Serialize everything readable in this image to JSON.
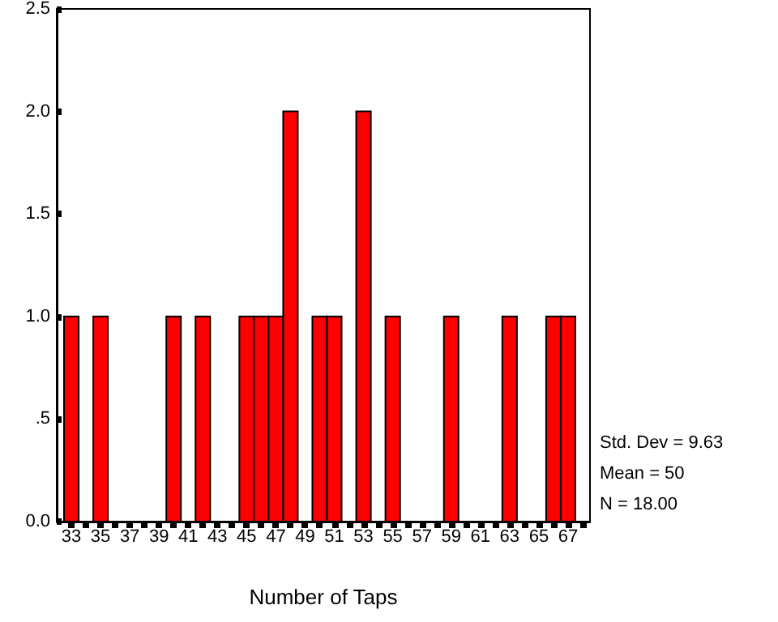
{
  "chart_data": {
    "type": "histogram",
    "xlabel": "Number of Taps",
    "bins": [
      32.5,
      33.5,
      34.5,
      35.5,
      36.5,
      37.5,
      38.5,
      39.5,
      40.5,
      41.5,
      42.5,
      43.5,
      44.5,
      45.5,
      46.5,
      47.5,
      48.5,
      49.5,
      50.5,
      51.5,
      52.5,
      53.5,
      54.5,
      55.5,
      56.5,
      57.5,
      58.5,
      59.5,
      60.5,
      61.5,
      62.5,
      63.5,
      64.5,
      65.5,
      66.5,
      67.5
    ],
    "values": [
      1,
      0,
      1,
      0,
      0,
      0,
      0,
      1,
      0,
      1,
      0,
      0,
      1,
      1,
      1,
      2,
      0,
      1,
      1,
      0,
      2,
      0,
      1,
      0,
      0,
      0,
      1,
      0,
      0,
      0,
      1,
      0,
      0,
      1,
      1
    ],
    "color": "#ff0000",
    "xlim": [
      32,
      68.5
    ],
    "xticks": [
      33,
      {
        "value": 34,
        "label": null
      },
      35,
      {
        "value": 36,
        "label": null
      },
      37,
      {
        "value": 38,
        "label": null
      },
      39,
      {
        "value": 40,
        "label": null
      },
      41,
      {
        "value": 42,
        "label": null
      },
      43,
      {
        "value": 44,
        "label": null
      },
      45,
      {
        "value": 46,
        "label": null
      },
      47,
      {
        "value": 48,
        "label": null
      },
      49,
      {
        "value": 50,
        "label": null
      },
      51,
      {
        "value": 52,
        "label": null
      },
      53,
      {
        "value": 54,
        "label": null
      },
      55,
      {
        "value": 56,
        "label": null
      },
      57,
      {
        "value": 58,
        "label": null
      },
      59,
      {
        "value": 60,
        "label": null
      },
      61,
      {
        "value": 62,
        "label": null
      },
      63,
      {
        "value": 64,
        "label": null
      },
      65,
      {
        "value": 66,
        "label": null
      },
      67,
      {
        "value": 68,
        "label": null
      }
    ],
    "ylim": [
      0,
      2.5
    ],
    "yticks": [
      {
        "value": 0,
        "label": "0.0"
      },
      {
        "value": 0.5,
        "label": ".5"
      },
      {
        "value": 1,
        "label": "1.0"
      },
      {
        "value": 1.5,
        "label": "1.5"
      },
      {
        "value": 2,
        "label": "2.0"
      },
      {
        "value": 2.5,
        "label": "2.5"
      }
    ],
    "annotations": [
      "Std. Dev = 9.63",
      "Mean = 50",
      "N = 18.00"
    ],
    "grid": false
  }
}
